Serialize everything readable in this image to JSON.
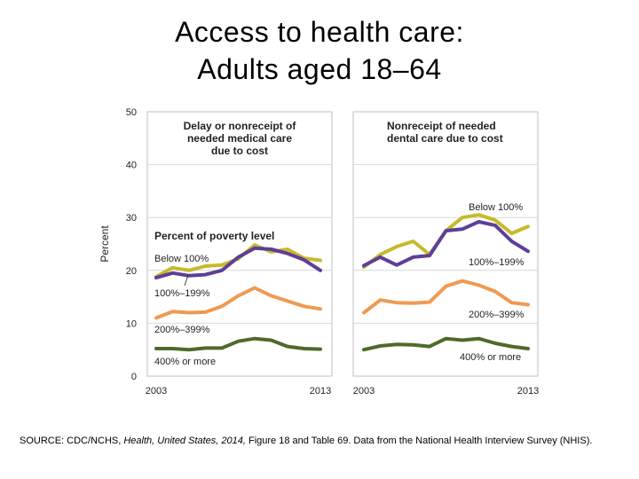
{
  "title": {
    "line1": "Access to health care:",
    "line2": "Adults aged 18–64"
  },
  "source": {
    "prefix": "SOURCE: CDC/NCHS, ",
    "italic1": "Health, United States, 2014,",
    "suffix": " Figure 18 and Table 69. Data from the National Health Interview Survey (NHIS)."
  },
  "colors": {
    "below_100": "#c8b92a",
    "p100_199": "#5e3f98",
    "p200_399": "#ef9a52",
    "p400_plus": "#4e6b2a",
    "grid": "#d9d9d9",
    "frame": "#bfbfbf",
    "text": "#231f20"
  },
  "chart_data": {
    "type": "line",
    "ylabel": "Percent",
    "ylim": [
      0,
      50
    ],
    "yticks": [
      "0",
      "10",
      "20",
      "30",
      "40",
      "50"
    ],
    "xticks": [
      "2003",
      "2013"
    ],
    "x": [
      2003,
      2004,
      2005,
      2006,
      2007,
      2008,
      2009,
      2010,
      2011,
      2012,
      2013
    ],
    "panels": [
      {
        "title": [
          "Delay or nonreceipt of",
          "needed medical care",
          "due to cost"
        ],
        "legend_title": "Percent of poverty level",
        "series": [
          {
            "name": "Below 100%",
            "color_key": "below_100",
            "values": [
              18.8,
              20.5,
              20.0,
              20.8,
              21.0,
              22.2,
              24.8,
              23.5,
              24.0,
              22.3,
              21.9
            ]
          },
          {
            "name": "100%–199%",
            "color_key": "p100_199",
            "values": [
              18.6,
              19.5,
              19.0,
              19.2,
              20.0,
              22.5,
              24.2,
              24.0,
              23.2,
              22.0,
              20.0
            ]
          },
          {
            "name": "200%–399%",
            "color_key": "p200_399",
            "values": [
              11.0,
              12.2,
              12.0,
              12.1,
              13.2,
              15.2,
              16.7,
              15.2,
              14.2,
              13.2,
              12.7
            ]
          },
          {
            "name": "400% or more",
            "color_key": "p400_plus",
            "values": [
              5.2,
              5.2,
              5.0,
              5.3,
              5.3,
              6.6,
              7.1,
              6.8,
              5.6,
              5.2,
              5.1
            ]
          }
        ],
        "labels": [
          "Below 100%",
          "100%–199%",
          "200%–399%",
          "400% or more"
        ]
      },
      {
        "title": [
          "Nonreceipt of needed",
          "dental care due to cost"
        ],
        "series": [
          {
            "name": "Below 100%",
            "color_key": "below_100",
            "values": [
              20.6,
              23.0,
              24.5,
              25.5,
              23.0,
              27.5,
              30.0,
              30.5,
              29.5,
              27.0,
              28.3
            ]
          },
          {
            "name": "100%–199%",
            "color_key": "p100_199",
            "values": [
              20.9,
              22.5,
              21.0,
              22.5,
              22.8,
              27.5,
              27.8,
              29.2,
              28.5,
              25.5,
              23.6
            ]
          },
          {
            "name": "200%–399%",
            "color_key": "p200_399",
            "values": [
              12.0,
              14.4,
              13.9,
              13.8,
              14.0,
              17.0,
              18.0,
              17.2,
              16.0,
              13.9,
              13.5
            ]
          },
          {
            "name": "400% or more",
            "color_key": "p400_plus",
            "values": [
              5.0,
              5.7,
              6.0,
              5.9,
              5.6,
              7.1,
              6.8,
              7.1,
              6.2,
              5.6,
              5.2
            ]
          }
        ],
        "labels": [
          "Below 100%",
          "100%–199%",
          "200%–399%",
          "400% or more"
        ]
      }
    ]
  }
}
